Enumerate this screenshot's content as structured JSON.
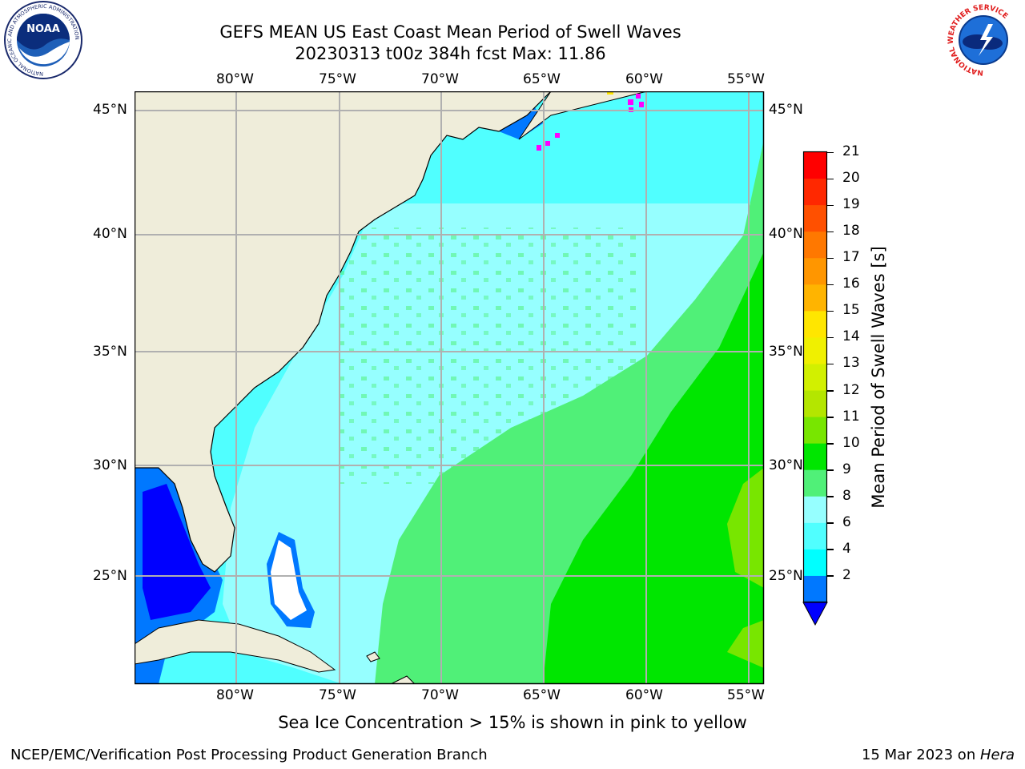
{
  "title": {
    "line1": "GEFS MEAN US East Coast Mean Period of Swell Waves",
    "line2": "20230313 t00z 384h fcst   Max: 11.86"
  },
  "map": {
    "lon_labels": [
      "80°W",
      "75°W",
      "70°W",
      "65°W",
      "60°W",
      "55°W"
    ],
    "lat_labels": [
      "45°N",
      "40°N",
      "35°N",
      "30°N",
      "25°N"
    ],
    "land_color": "#efedda",
    "grid_color": "#b0b0b0"
  },
  "colorbar": {
    "label": "Mean Period of Swell Waves [s]",
    "ticks": [
      "21",
      "20",
      "19",
      "18",
      "17",
      "16",
      "15",
      "14",
      "13",
      "12",
      "11",
      "10",
      "9",
      "8",
      "6",
      "4",
      "2"
    ],
    "colors": [
      "#ff0000",
      "#ff2800",
      "#ff5000",
      "#ff7800",
      "#ff9600",
      "#ffb400",
      "#ffe600",
      "#f0f000",
      "#d2f000",
      "#b4e600",
      "#78e600",
      "#00e600",
      "#50f078",
      "#96ffff",
      "#50ffff",
      "#00ffff",
      "#0078ff"
    ],
    "under_color": "#0000ff"
  },
  "notes": {
    "sea_ice": "Sea Ice Concentration > 15% is shown in pink to yellow"
  },
  "footer": {
    "left": "NCEP/EMC/Verification Post Processing Product Generation Branch",
    "date": "15 Mar 2023 on ",
    "machine": "Hera"
  },
  "logos": {
    "noaa_text": "NOAA",
    "noaa_ring": "NATIONAL OCEANIC AND ATMOSPHERIC ADMINISTRATION",
    "nws_ring": "NATIONAL WEATHER SERVICE"
  }
}
